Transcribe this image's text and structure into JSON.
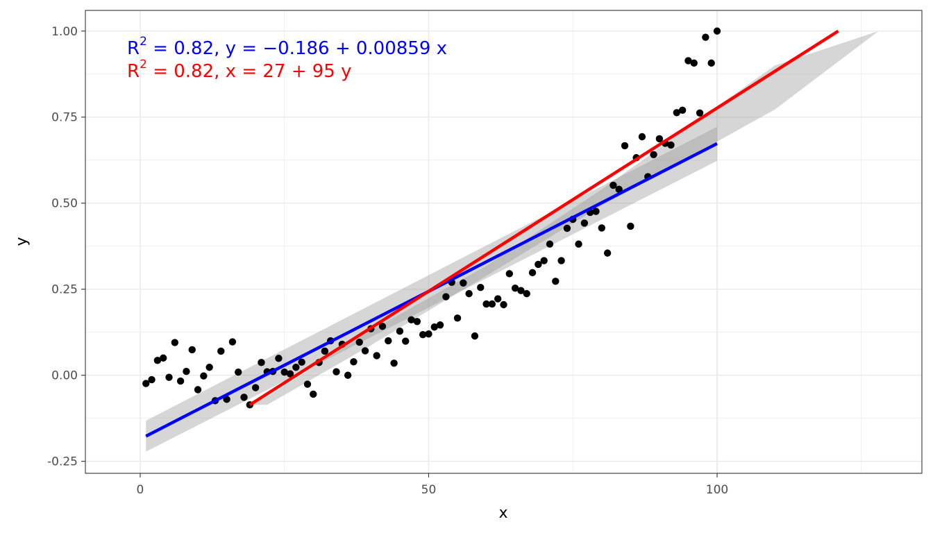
{
  "chart_data": {
    "type": "scatter",
    "title": "",
    "xlabel": "x",
    "ylabel": "y",
    "xlim": [
      -9.5,
      135.5
    ],
    "ylim": [
      -0.285,
      1.06
    ],
    "x_ticks": [
      0,
      50,
      100
    ],
    "x_tick_labels": [
      "0",
      "50",
      "100"
    ],
    "y_ticks": [
      -0.25,
      0,
      0.25,
      0.5,
      0.75,
      1.0
    ],
    "y_tick_labels": [
      "-0.25",
      "0.00",
      "0.25",
      "0.50",
      "0.75",
      "1.00"
    ],
    "grid": true,
    "legend": "none",
    "colors": {
      "points": "#000000",
      "fit_y_on_x": "#0000ff",
      "fit_x_on_y": "#ff0000",
      "band": "#999999",
      "grid": "#ebebeb",
      "panel_border": "#333333"
    },
    "points": {
      "x": [
        1,
        2,
        3,
        4,
        5,
        6,
        7,
        8,
        9,
        10,
        11,
        12,
        13,
        14,
        15,
        16,
        17,
        18,
        19,
        20,
        21,
        22,
        23,
        24,
        25,
        26,
        27,
        28,
        29,
        30,
        31,
        32,
        33,
        34,
        35,
        36,
        37,
        38,
        39,
        40,
        41,
        42,
        43,
        44,
        45,
        46,
        47,
        48,
        49,
        50,
        51,
        52,
        53,
        54,
        55,
        56,
        57,
        58,
        59,
        60,
        61,
        62,
        63,
        64,
        65,
        66,
        67,
        68,
        69,
        70,
        71,
        72,
        73,
        74,
        75,
        76,
        77,
        78,
        79,
        80,
        81,
        82,
        83,
        84,
        85,
        86,
        87,
        88,
        89,
        90,
        91,
        92,
        93,
        94,
        95,
        96,
        97,
        98,
        99,
        100
      ],
      "y": [
        -0.024,
        -0.013,
        0.043,
        0.05,
        -0.006,
        0.095,
        -0.017,
        0.011,
        0.074,
        -0.042,
        -0.002,
        0.023,
        -0.074,
        0.07,
        -0.07,
        0.097,
        0.009,
        -0.064,
        -0.086,
        -0.036,
        0.037,
        0.01,
        0.011,
        0.049,
        0.009,
        0.004,
        0.023,
        0.038,
        -0.026,
        -0.055,
        0.037,
        0.07,
        0.1,
        0.01,
        0.09,
        0,
        0.039,
        0.096,
        0.071,
        0.135,
        0.057,
        0.142,
        0.1,
        0.035,
        0.128,
        0.099,
        0.161,
        0.156,
        0.118,
        0.12,
        0.14,
        0.146,
        0.228,
        0.27,
        0.166,
        0.268,
        0.237,
        0.114,
        0.255,
        0.207,
        0.207,
        0.222,
        0.205,
        0.295,
        0.253,
        0.246,
        0.237,
        0.298,
        0.322,
        0.333,
        0.381,
        0.273,
        0.333,
        0.427,
        0.453,
        0.381,
        0.442,
        0.473,
        0.476,
        0.428,
        0.355,
        0.552,
        0.54,
        0.667,
        0.433,
        0.632,
        0.693,
        0.577,
        0.641,
        0.687,
        0.674,
        0.669,
        0.763,
        0.77,
        0.914,
        0.907,
        0.762,
        0.982,
        0.907,
        1.0
      ]
    },
    "fit_lines": [
      {
        "name": "y ~ x",
        "color": "#0000ff",
        "x": [
          1,
          100
        ],
        "y": [
          -0.177,
          0.673
        ],
        "band_lower": [
          -0.222,
          0.623
        ],
        "band_upper": [
          -0.132,
          0.722
        ]
      },
      {
        "name": "x ~ y",
        "color": "#ff0000",
        "x": [
          19,
          121
        ],
        "y": [
          -0.086,
          1.0
        ],
        "band_x": [
          19,
          22,
          40,
          60,
          80,
          110,
          128
        ],
        "band_lower": [
          -0.086,
          -0.086,
          0.087,
          0.289,
          0.493,
          0.772,
          1.0
        ],
        "band_upper": [
          -0.086,
          -0.062,
          0.13,
          0.318,
          0.54,
          0.9,
          1.0
        ]
      }
    ],
    "annotations": [
      {
        "color": "#0000ff",
        "text_pre": "R",
        "text_sup": "2",
        "text_post": " = 0.82, y = −0.186 + 0.00859 x"
      },
      {
        "color": "#ff0000",
        "text_pre": "R",
        "text_sup": "2",
        "text_post": " = 0.82, x = 27 + 95 y"
      }
    ]
  }
}
